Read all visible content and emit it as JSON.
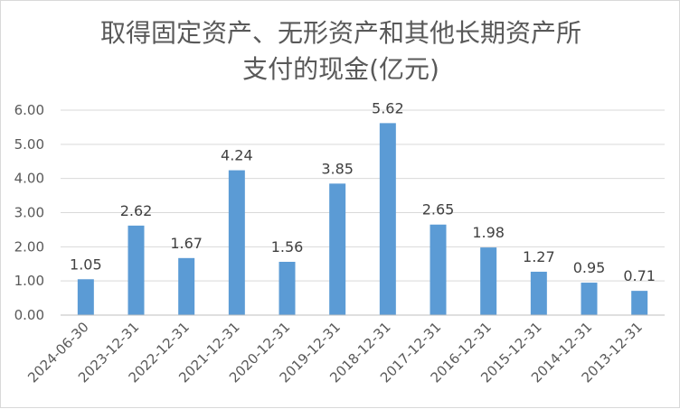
{
  "chart_data": {
    "type": "bar",
    "title_line1": "取得固定资产、无形资产和其他长期资产所",
    "title_line2": "支付的现金(亿元)",
    "categories": [
      "2024-06-30",
      "2023-12-31",
      "2022-12-31",
      "2021-12-31",
      "2020-12-31",
      "2019-12-31",
      "2018-12-31",
      "2017-12-31",
      "2016-12-31",
      "2015-12-31",
      "2014-12-31",
      "2013-12-31"
    ],
    "values": [
      1.05,
      2.62,
      1.67,
      4.24,
      1.56,
      3.85,
      5.62,
      2.65,
      1.98,
      1.27,
      0.95,
      0.71
    ],
    "value_labels": [
      "1.05",
      "2.62",
      "1.67",
      "4.24",
      "1.56",
      "3.85",
      "5.62",
      "2.65",
      "1.98",
      "1.27",
      "0.95",
      "0.71"
    ],
    "y_ticks": [
      "0.00",
      "1.00",
      "2.00",
      "3.00",
      "4.00",
      "5.00",
      "6.00"
    ],
    "ylim": [
      0,
      6
    ],
    "grid": true,
    "legend": "none",
    "colors": {
      "bar": "#5b9bd5",
      "grid": "#d9d9d9",
      "axis": "#bfbfbf",
      "text": "#595959"
    }
  }
}
